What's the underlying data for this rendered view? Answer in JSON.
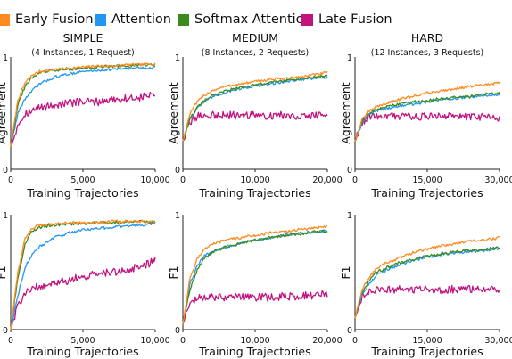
{
  "legend": [
    {
      "name": "Early Fusion",
      "color": "#ff8a1f"
    },
    {
      "name": "Attention",
      "color": "#2196f3"
    },
    {
      "name": "Softmax Attention",
      "color": "#3c8a1e"
    },
    {
      "name": "Late Fusion",
      "color": "#c2137f"
    }
  ],
  "chart_data": [
    {
      "type": "line",
      "title": "SIMPLE",
      "subtitle": "(4 Instances, 1 Request)",
      "xlabel": "Training Trajectories",
      "ylabel": "Agreement",
      "xlim": [
        0,
        10000
      ],
      "ylim": [
        0,
        1
      ],
      "xticks": [
        0,
        5000,
        10000
      ],
      "xtick_labels": [
        "0",
        "5,000",
        "10,000"
      ],
      "yticks": [
        0,
        1
      ],
      "ytick_labels": [
        "0",
        "1"
      ],
      "x": [
        0,
        500,
        1000,
        1500,
        2000,
        3000,
        4000,
        5000,
        6000,
        7000,
        8000,
        9000,
        10000
      ],
      "series": [
        {
          "name": "Early Fusion",
          "values": [
            0.2,
            0.62,
            0.77,
            0.84,
            0.87,
            0.89,
            0.9,
            0.91,
            0.92,
            0.92,
            0.93,
            0.93,
            0.94
          ]
        },
        {
          "name": "Attention",
          "values": [
            0.2,
            0.5,
            0.63,
            0.7,
            0.76,
            0.82,
            0.85,
            0.87,
            0.88,
            0.89,
            0.9,
            0.9,
            0.91
          ]
        },
        {
          "name": "Softmax Attention",
          "values": [
            0.2,
            0.58,
            0.74,
            0.82,
            0.86,
            0.88,
            0.89,
            0.9,
            0.91,
            0.92,
            0.92,
            0.93,
            0.93
          ]
        },
        {
          "name": "Late Fusion",
          "values": [
            0.2,
            0.4,
            0.5,
            0.52,
            0.55,
            0.57,
            0.59,
            0.6,
            0.6,
            0.62,
            0.63,
            0.64,
            0.67
          ]
        }
      ]
    },
    {
      "type": "line",
      "title": "MEDIUM",
      "subtitle": "(8 Instances, 2 Requests)",
      "xlabel": "Training Trajectories",
      "ylabel": "Agreement",
      "xlim": [
        0,
        20000
      ],
      "ylim": [
        0,
        1
      ],
      "xticks": [
        0,
        10000,
        20000
      ],
      "xtick_labels": [
        "0",
        "10,000",
        "20,000"
      ],
      "yticks": [
        0,
        1
      ],
      "ytick_labels": [
        "0",
        "1"
      ],
      "x": [
        0,
        1000,
        2000,
        3000,
        4000,
        6000,
        8000,
        10000,
        12000,
        14000,
        16000,
        18000,
        20000
      ],
      "series": [
        {
          "name": "Early Fusion",
          "values": [
            0.25,
            0.5,
            0.6,
            0.66,
            0.7,
            0.74,
            0.76,
            0.78,
            0.8,
            0.81,
            0.82,
            0.84,
            0.86
          ]
        },
        {
          "name": "Attention",
          "values": [
            0.25,
            0.45,
            0.55,
            0.6,
            0.64,
            0.69,
            0.72,
            0.74,
            0.76,
            0.78,
            0.8,
            0.81,
            0.82
          ]
        },
        {
          "name": "Softmax Attention",
          "values": [
            0.25,
            0.45,
            0.55,
            0.61,
            0.65,
            0.7,
            0.73,
            0.75,
            0.77,
            0.79,
            0.8,
            0.82,
            0.83
          ]
        },
        {
          "name": "Late Fusion",
          "values": [
            0.25,
            0.42,
            0.47,
            0.48,
            0.48,
            0.48,
            0.48,
            0.48,
            0.48,
            0.48,
            0.48,
            0.48,
            0.48
          ]
        }
      ]
    },
    {
      "type": "line",
      "title": "HARD",
      "subtitle": "(12 Instances, 3 Requests)",
      "xlabel": "Training Trajectories",
      "ylabel": "Agreement",
      "xlim": [
        0,
        30000
      ],
      "ylim": [
        0,
        1
      ],
      "xticks": [
        0,
        15000,
        30000
      ],
      "xtick_labels": [
        "0",
        "15,000",
        "30,000"
      ],
      "yticks": [
        0,
        1
      ],
      "ytick_labels": [
        "0",
        "1"
      ],
      "x": [
        0,
        1500,
        3000,
        4500,
        6000,
        9000,
        12000,
        15000,
        18000,
        21000,
        24000,
        27000,
        30000
      ],
      "series": [
        {
          "name": "Early Fusion",
          "values": [
            0.25,
            0.44,
            0.52,
            0.56,
            0.58,
            0.62,
            0.65,
            0.68,
            0.7,
            0.72,
            0.74,
            0.75,
            0.77
          ]
        },
        {
          "name": "Attention",
          "values": [
            0.25,
            0.42,
            0.49,
            0.52,
            0.54,
            0.56,
            0.58,
            0.6,
            0.62,
            0.63,
            0.64,
            0.66,
            0.67
          ]
        },
        {
          "name": "Softmax Attention",
          "values": [
            0.25,
            0.43,
            0.5,
            0.53,
            0.55,
            0.58,
            0.6,
            0.61,
            0.63,
            0.64,
            0.65,
            0.67,
            0.68
          ]
        },
        {
          "name": "Late Fusion",
          "values": [
            0.25,
            0.42,
            0.47,
            0.48,
            0.48,
            0.47,
            0.47,
            0.47,
            0.47,
            0.47,
            0.47,
            0.47,
            0.46
          ]
        }
      ]
    },
    {
      "type": "line",
      "title": "",
      "subtitle": "",
      "xlabel": "Training Trajectories",
      "ylabel": "F1",
      "xlim": [
        0,
        10000
      ],
      "ylim": [
        0,
        1
      ],
      "xticks": [
        0,
        5000,
        10000
      ],
      "xtick_labels": [
        "0",
        "5,000",
        "10,000"
      ],
      "yticks": [
        0,
        1
      ],
      "ytick_labels": [
        "0",
        "1"
      ],
      "x": [
        0,
        500,
        1000,
        1500,
        2000,
        3000,
        4000,
        5000,
        6000,
        7000,
        8000,
        9000,
        10000
      ],
      "series": [
        {
          "name": "Early Fusion",
          "values": [
            0.0,
            0.5,
            0.8,
            0.88,
            0.91,
            0.92,
            0.93,
            0.93,
            0.93,
            0.94,
            0.94,
            0.94,
            0.94
          ]
        },
        {
          "name": "Attention",
          "values": [
            0.0,
            0.3,
            0.55,
            0.65,
            0.72,
            0.8,
            0.84,
            0.87,
            0.88,
            0.89,
            0.9,
            0.91,
            0.92
          ]
        },
        {
          "name": "Softmax Attention",
          "values": [
            0.0,
            0.45,
            0.75,
            0.86,
            0.89,
            0.91,
            0.92,
            0.92,
            0.93,
            0.93,
            0.94,
            0.94,
            0.94
          ]
        },
        {
          "name": "Late Fusion",
          "values": [
            0.0,
            0.2,
            0.33,
            0.36,
            0.38,
            0.4,
            0.43,
            0.46,
            0.48,
            0.5,
            0.52,
            0.55,
            0.6
          ]
        }
      ]
    },
    {
      "type": "line",
      "title": "",
      "subtitle": "",
      "xlabel": "Training Trajectories",
      "ylabel": "F1",
      "xlim": [
        0,
        20000
      ],
      "ylim": [
        0,
        1
      ],
      "xticks": [
        0,
        10000,
        20000
      ],
      "xtick_labels": [
        "0",
        "10,000",
        "20,000"
      ],
      "yticks": [
        0,
        1
      ],
      "ytick_labels": [
        "0",
        "1"
      ],
      "x": [
        0,
        1000,
        2000,
        3000,
        4000,
        6000,
        8000,
        10000,
        12000,
        14000,
        16000,
        18000,
        20000
      ],
      "series": [
        {
          "name": "Early Fusion",
          "values": [
            0.05,
            0.45,
            0.62,
            0.7,
            0.74,
            0.78,
            0.8,
            0.82,
            0.84,
            0.85,
            0.87,
            0.88,
            0.9
          ]
        },
        {
          "name": "Attention",
          "values": [
            0.05,
            0.4,
            0.56,
            0.64,
            0.68,
            0.72,
            0.75,
            0.78,
            0.8,
            0.82,
            0.84,
            0.85,
            0.86
          ]
        },
        {
          "name": "Softmax Attention",
          "values": [
            0.05,
            0.35,
            0.52,
            0.62,
            0.67,
            0.72,
            0.75,
            0.78,
            0.8,
            0.82,
            0.83,
            0.85,
            0.86
          ]
        },
        {
          "name": "Late Fusion",
          "values": [
            0.05,
            0.22,
            0.27,
            0.28,
            0.28,
            0.28,
            0.28,
            0.28,
            0.28,
            0.29,
            0.29,
            0.3,
            0.31
          ]
        }
      ]
    },
    {
      "type": "line",
      "title": "",
      "subtitle": "",
      "xlabel": "Training Trajectories",
      "ylabel": "F1",
      "xlim": [
        0,
        30000
      ],
      "ylim": [
        0,
        1
      ],
      "xticks": [
        0,
        15000,
        30000
      ],
      "xtick_labels": [
        "0",
        "15,000",
        "30,000"
      ],
      "yticks": [
        0,
        1
      ],
      "ytick_labels": [
        "0",
        "1"
      ],
      "x": [
        0,
        1500,
        3000,
        4500,
        6000,
        9000,
        12000,
        15000,
        18000,
        21000,
        24000,
        27000,
        30000
      ],
      "series": [
        {
          "name": "Early Fusion",
          "values": [
            0.1,
            0.35,
            0.46,
            0.53,
            0.57,
            0.62,
            0.67,
            0.7,
            0.73,
            0.75,
            0.77,
            0.78,
            0.8
          ]
        },
        {
          "name": "Attention",
          "values": [
            0.1,
            0.3,
            0.4,
            0.47,
            0.51,
            0.56,
            0.6,
            0.63,
            0.65,
            0.67,
            0.68,
            0.69,
            0.7
          ]
        },
        {
          "name": "Softmax Attention",
          "values": [
            0.1,
            0.33,
            0.43,
            0.5,
            0.53,
            0.58,
            0.61,
            0.64,
            0.66,
            0.68,
            0.69,
            0.7,
            0.71
          ]
        },
        {
          "name": "Late Fusion",
          "values": [
            0.1,
            0.3,
            0.34,
            0.35,
            0.35,
            0.35,
            0.35,
            0.35,
            0.35,
            0.35,
            0.35,
            0.35,
            0.35
          ]
        }
      ]
    }
  ]
}
